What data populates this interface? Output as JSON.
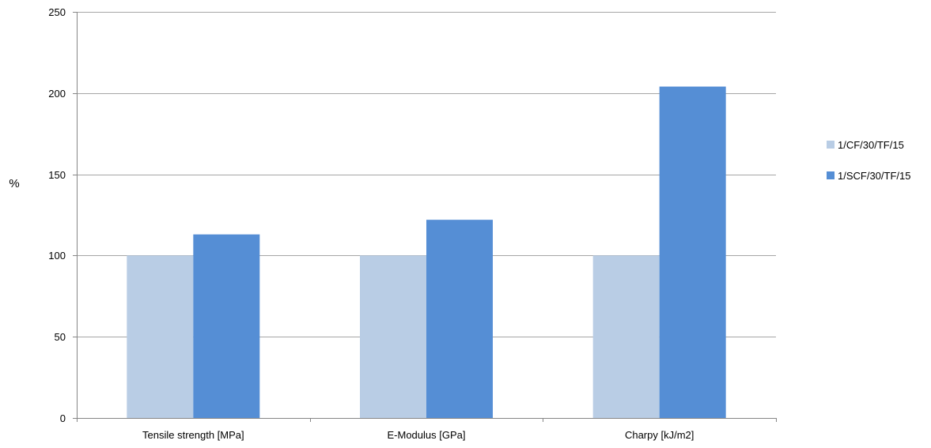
{
  "chart_data": {
    "type": "bar",
    "categories": [
      "Tensile strength [MPa]",
      "E-Modulus [GPa]",
      "Charpy [kJ/m2]"
    ],
    "series": [
      {
        "name": "1/CF/30/TF/15",
        "values": [
          100,
          100,
          100
        ],
        "color": "#b9cde5"
      },
      {
        "name": "1/SCF/30/TF/15",
        "values": [
          113,
          122,
          204
        ],
        "color": "#558ed5"
      }
    ],
    "xlabel": "",
    "ylabel": "%",
    "ylim": [
      0,
      250
    ],
    "yticks": [
      0,
      50,
      100,
      150,
      200,
      250
    ],
    "grid": true,
    "legend": "right",
    "gridline_color": "#a6a6a6",
    "axis_color": "#868686"
  }
}
